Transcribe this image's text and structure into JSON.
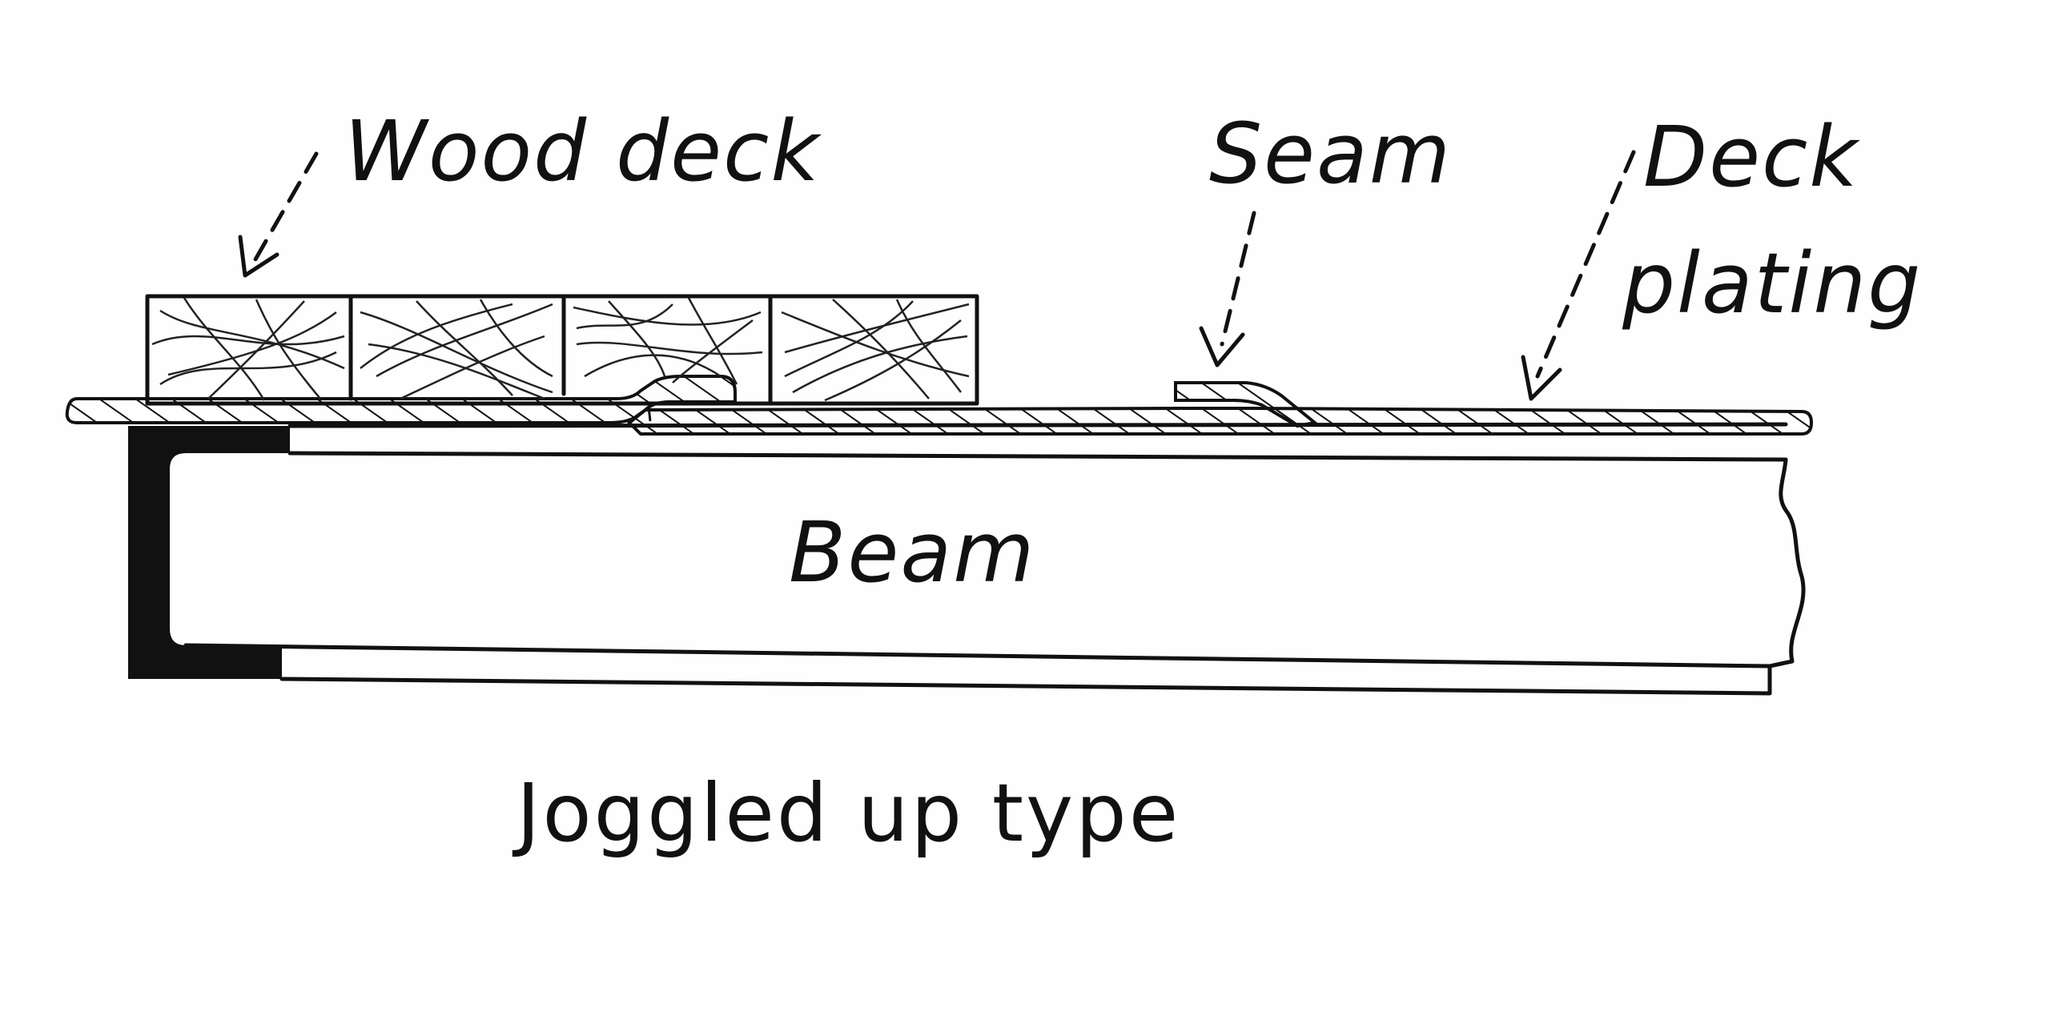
{
  "labels": {
    "wood_deck": "Wood deck",
    "seam": "Seam",
    "deck_line1": "Deck",
    "deck_line2": "plating",
    "beam": "Beam",
    "caption": "Joggled up type"
  },
  "colors": {
    "ink": "#111111",
    "paper": "#fefefe"
  }
}
